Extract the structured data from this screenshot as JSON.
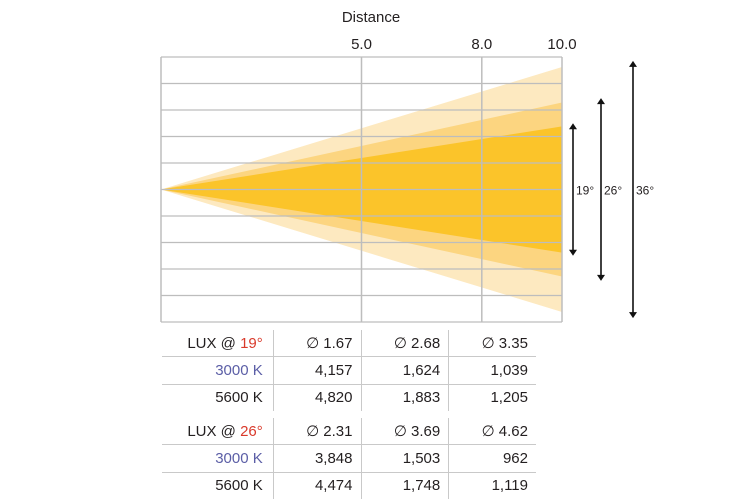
{
  "colors": {
    "beam_36": "#fde9c0",
    "beam_26": "#fcd580",
    "beam_19": "#fbc42a",
    "grid": "#bdbdbd",
    "angle_red": "#d93a2b",
    "kelvin_3000": "#5b5ea6"
  },
  "chart_data": {
    "type": "beam-diagram",
    "title": "Distance",
    "distance_ticks": [
      {
        "value": 5.0,
        "label": "5.0"
      },
      {
        "value": 8.0,
        "label": "8.0"
      },
      {
        "value": 10.0,
        "label": "10.0"
      }
    ],
    "xlim": [
      0,
      10
    ],
    "beams": [
      {
        "angle": 36,
        "label": "36°",
        "color": "#fde9c0"
      },
      {
        "angle": 26,
        "label": "26°",
        "color": "#fcd580"
      },
      {
        "angle": 19,
        "label": "19°",
        "color": "#fbc42a"
      }
    ],
    "grid_rows": 10
  },
  "tables": [
    {
      "header_prefix": "LUX @ ",
      "angle": "19°",
      "diameters": [
        "∅ 1.67",
        "∅ 2.68",
        "∅ 3.35"
      ],
      "rows": [
        {
          "label": "3000 K",
          "values": [
            "4,157",
            "1,624",
            "1,039"
          ]
        },
        {
          "label": "5600 K",
          "values": [
            "4,820",
            "1,883",
            "1,205"
          ]
        }
      ]
    },
    {
      "header_prefix": "LUX @ ",
      "angle": "26°",
      "diameters": [
        "∅ 2.31",
        "∅ 3.69",
        "∅ 4.62"
      ],
      "rows": [
        {
          "label": "3000 K",
          "values": [
            "3,848",
            "1,503",
            "962"
          ]
        },
        {
          "label": "5600 K",
          "values": [
            "4,474",
            "1,748",
            "1,119"
          ]
        }
      ]
    }
  ]
}
